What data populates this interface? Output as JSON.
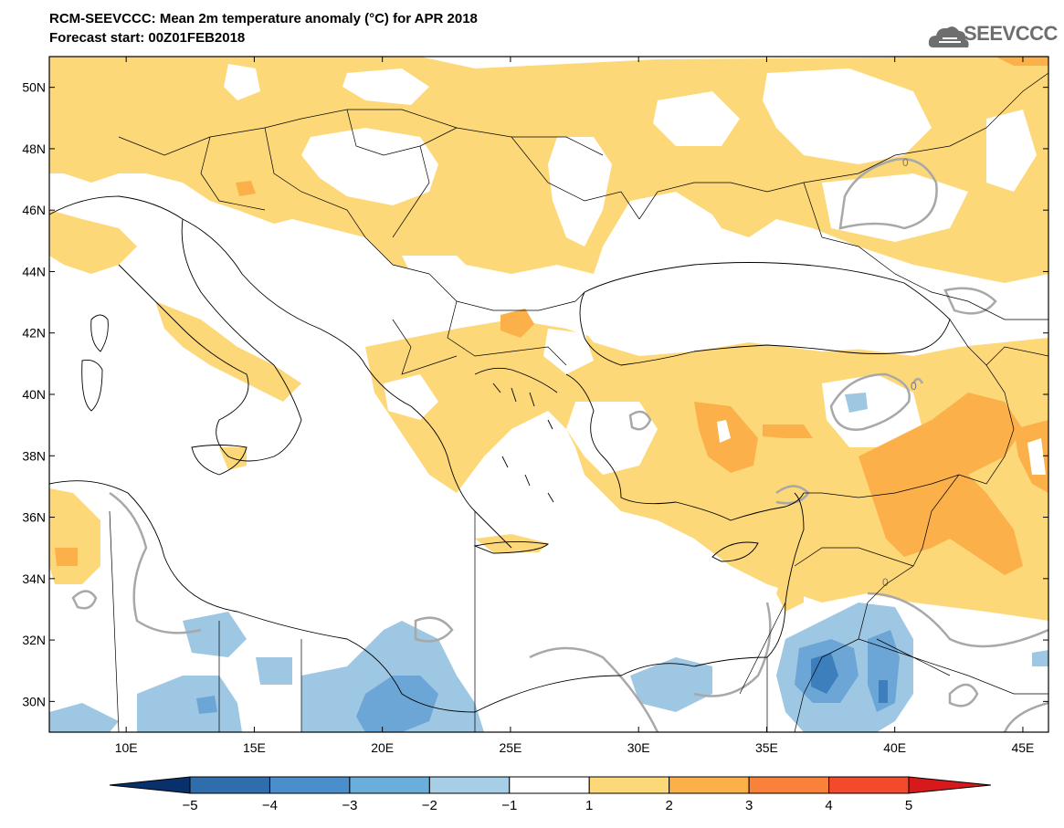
{
  "header": {
    "title": "RCM-SEEVCCC: Mean 2m temperature anomaly (°C) for APR 2018",
    "subtitle": "Forecast start: 00Z01FEB2018"
  },
  "logo": {
    "text": "SEEVCCC",
    "icon": "cloud-icon"
  },
  "map": {
    "lat_labels": [
      "50N",
      "48N",
      "46N",
      "44N",
      "42N",
      "40N",
      "38N",
      "36N",
      "34N",
      "32N",
      "30N"
    ],
    "lon_labels": [
      "10E",
      "15E",
      "20E",
      "25E",
      "30E",
      "35E",
      "40E",
      "45E"
    ],
    "lat_values": [
      50,
      48,
      46,
      44,
      42,
      40,
      38,
      36,
      34,
      32,
      30
    ],
    "lon_values": [
      10,
      15,
      20,
      25,
      30,
      35,
      40,
      45
    ],
    "lat_range": [
      29,
      51
    ],
    "lon_range": [
      7,
      46
    ],
    "contour_labels": [
      "0",
      "0",
      "0"
    ],
    "colors": {
      "land_positive_1_2": "#fdd878",
      "land_positive_2_3": "#fbb04a",
      "positive_3_4": "#f9813a",
      "negative_1_2": "#9ec7e4",
      "negative_2_3": "#6ba6d6",
      "negative_3_4": "#3d7ebd",
      "contour_zero": "#a8a8a8",
      "border": "#000000"
    }
  },
  "colorbar": {
    "labels": [
      "−5",
      "−4",
      "−3",
      "−2",
      "−1",
      "1",
      "2",
      "3",
      "4",
      "5"
    ],
    "colors": [
      "#08306b",
      "#2f6dac",
      "#4a8fcc",
      "#6aaedc",
      "#a6cee6",
      "#ffffff",
      "#fdd878",
      "#fbb04a",
      "#f9813a",
      "#f24a2a",
      "#d7191c"
    ]
  }
}
